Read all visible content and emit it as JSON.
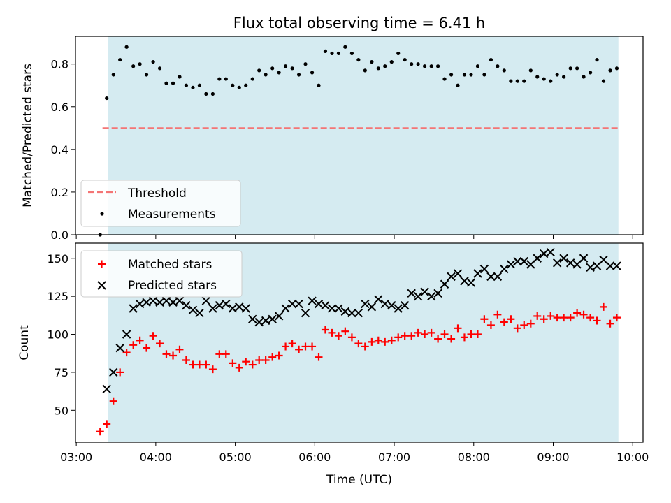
{
  "figure": {
    "title": "Flux total observing time = 6.41 h",
    "xlabel": "Time (UTC)",
    "x_ticks": [
      "03:00",
      "04:00",
      "05:00",
      "06:00",
      "07:00",
      "08:00",
      "09:00",
      "10:00"
    ],
    "x_range_hours": [
      2.99,
      10.13
    ],
    "shaded_span_hours": [
      3.4,
      9.82
    ],
    "shade_color": "#d5ebf1"
  },
  "chart_data": [
    {
      "type": "scatter",
      "ylabel": "Matched/Predicted stars",
      "ylim": [
        0,
        0.93
      ],
      "y_ticks": [
        "0.0",
        "0.2",
        "0.4",
        "0.6",
        "0.8"
      ],
      "threshold": {
        "name": "Threshold",
        "value": 0.5,
        "color": "#f47575",
        "x_from": 3.33,
        "x_to": 9.82
      },
      "series": [
        {
          "name": "Measurements",
          "color": "#000000",
          "x": [
            3.3,
            3.383,
            3.467,
            3.55,
            3.633,
            3.717,
            3.8,
            3.883,
            3.967,
            4.05,
            4.133,
            4.217,
            4.3,
            4.383,
            4.467,
            4.55,
            4.633,
            4.717,
            4.8,
            4.883,
            4.967,
            5.05,
            5.133,
            5.217,
            5.3,
            5.383,
            5.467,
            5.55,
            5.633,
            5.717,
            5.8,
            5.883,
            5.967,
            6.05,
            6.133,
            6.217,
            6.3,
            6.383,
            6.467,
            6.55,
            6.633,
            6.717,
            6.8,
            6.883,
            6.967,
            7.05,
            7.133,
            7.217,
            7.3,
            7.383,
            7.467,
            7.55,
            7.633,
            7.717,
            7.8,
            7.883,
            7.967,
            8.05,
            8.133,
            8.217,
            8.3,
            8.383,
            8.467,
            8.55,
            8.633,
            8.717,
            8.8,
            8.883,
            8.967,
            9.05,
            9.133,
            9.217,
            9.3,
            9.383,
            9.467,
            9.55,
            9.633,
            9.717,
            9.8
          ],
          "y": [
            0.0,
            0.64,
            0.75,
            0.82,
            0.88,
            0.79,
            0.8,
            0.75,
            0.81,
            0.78,
            0.71,
            0.71,
            0.74,
            0.7,
            0.69,
            0.7,
            0.66,
            0.66,
            0.73,
            0.73,
            0.7,
            0.69,
            0.7,
            0.73,
            0.77,
            0.75,
            0.78,
            0.76,
            0.79,
            0.78,
            0.75,
            0.8,
            0.76,
            0.7,
            0.86,
            0.85,
            0.85,
            0.88,
            0.85,
            0.82,
            0.77,
            0.81,
            0.78,
            0.79,
            0.81,
            0.85,
            0.82,
            0.8,
            0.8,
            0.79,
            0.79,
            0.79,
            0.73,
            0.75,
            0.7,
            0.75,
            0.75,
            0.79,
            0.75,
            0.82,
            0.79,
            0.77,
            0.72,
            0.72,
            0.72,
            0.77,
            0.74,
            0.73,
            0.72,
            0.75,
            0.74,
            0.78,
            0.78,
            0.74,
            0.76,
            0.82,
            0.72,
            0.77,
            0.78
          ]
        }
      ]
    },
    {
      "type": "scatter",
      "ylabel": "Count",
      "ylim": [
        29,
        160
      ],
      "y_ticks": [
        "50",
        "75",
        "100",
        "125",
        "150"
      ],
      "series": [
        {
          "name": "Matched stars",
          "color": "#ff0000",
          "x": [
            3.3,
            3.383,
            3.467,
            3.55,
            3.633,
            3.717,
            3.8,
            3.883,
            3.967,
            4.05,
            4.133,
            4.217,
            4.3,
            4.383,
            4.467,
            4.55,
            4.633,
            4.717,
            4.8,
            4.883,
            4.967,
            5.05,
            5.133,
            5.217,
            5.3,
            5.383,
            5.467,
            5.55,
            5.633,
            5.717,
            5.8,
            5.883,
            5.967,
            6.05,
            6.133,
            6.217,
            6.3,
            6.383,
            6.467,
            6.55,
            6.633,
            6.717,
            6.8,
            6.883,
            6.967,
            7.05,
            7.133,
            7.217,
            7.3,
            7.383,
            7.467,
            7.55,
            7.633,
            7.717,
            7.8,
            7.883,
            7.967,
            8.05,
            8.133,
            8.217,
            8.3,
            8.383,
            8.467,
            8.55,
            8.633,
            8.717,
            8.8,
            8.883,
            8.967,
            9.05,
            9.133,
            9.217,
            9.3,
            9.383,
            9.467,
            9.55,
            9.633,
            9.717,
            9.8
          ],
          "y": [
            36,
            41,
            56,
            75,
            88,
            93,
            96,
            91,
            99,
            94,
            87,
            86,
            90,
            83,
            80,
            80,
            80,
            77,
            87,
            87,
            81,
            78,
            82,
            80,
            83,
            83,
            85,
            86,
            92,
            94,
            90,
            92,
            92,
            85,
            103,
            101,
            99,
            102,
            98,
            94,
            92,
            95,
            96,
            95,
            96,
            98,
            99,
            99,
            101,
            100,
            101,
            97,
            100,
            97,
            104,
            98,
            100,
            100,
            110,
            106,
            113,
            108,
            110,
            104,
            106,
            107,
            112,
            110,
            112,
            111,
            111,
            111,
            114,
            113,
            111,
            109,
            118,
            107,
            111
          ]
        },
        {
          "name": "Predicted stars",
          "color": "#000000",
          "x": [
            3.383,
            3.467,
            3.55,
            3.633,
            3.717,
            3.8,
            3.883,
            3.967,
            4.05,
            4.133,
            4.217,
            4.3,
            4.383,
            4.467,
            4.55,
            4.633,
            4.717,
            4.8,
            4.883,
            4.967,
            5.05,
            5.133,
            5.217,
            5.3,
            5.383,
            5.467,
            5.55,
            5.633,
            5.717,
            5.8,
            5.883,
            5.967,
            6.05,
            6.133,
            6.217,
            6.3,
            6.383,
            6.467,
            6.55,
            6.633,
            6.717,
            6.8,
            6.883,
            6.967,
            7.05,
            7.133,
            7.217,
            7.3,
            7.383,
            7.467,
            7.55,
            7.633,
            7.717,
            7.8,
            7.883,
            7.967,
            8.05,
            8.133,
            8.217,
            8.3,
            8.383,
            8.467,
            8.55,
            8.633,
            8.717,
            8.8,
            8.883,
            8.967,
            9.05,
            9.133,
            9.217,
            9.3,
            9.383,
            9.467,
            9.55,
            9.633,
            9.717,
            9.8
          ],
          "y": [
            64,
            75,
            91,
            100,
            117,
            120,
            121,
            122,
            121,
            122,
            121,
            122,
            119,
            116,
            114,
            122,
            117,
            119,
            120,
            117,
            118,
            117,
            110,
            108,
            109,
            110,
            112,
            117,
            120,
            120,
            114,
            122,
            120,
            119,
            117,
            117,
            115,
            114,
            114,
            120,
            118,
            123,
            120,
            119,
            117,
            119,
            127,
            125,
            128,
            125,
            127,
            133,
            138,
            140,
            135,
            134,
            140,
            143,
            138,
            138,
            143,
            146,
            148,
            148,
            146,
            150,
            153,
            154,
            147,
            150,
            147,
            146,
            150,
            144,
            145,
            149,
            145,
            145
          ]
        }
      ]
    }
  ]
}
